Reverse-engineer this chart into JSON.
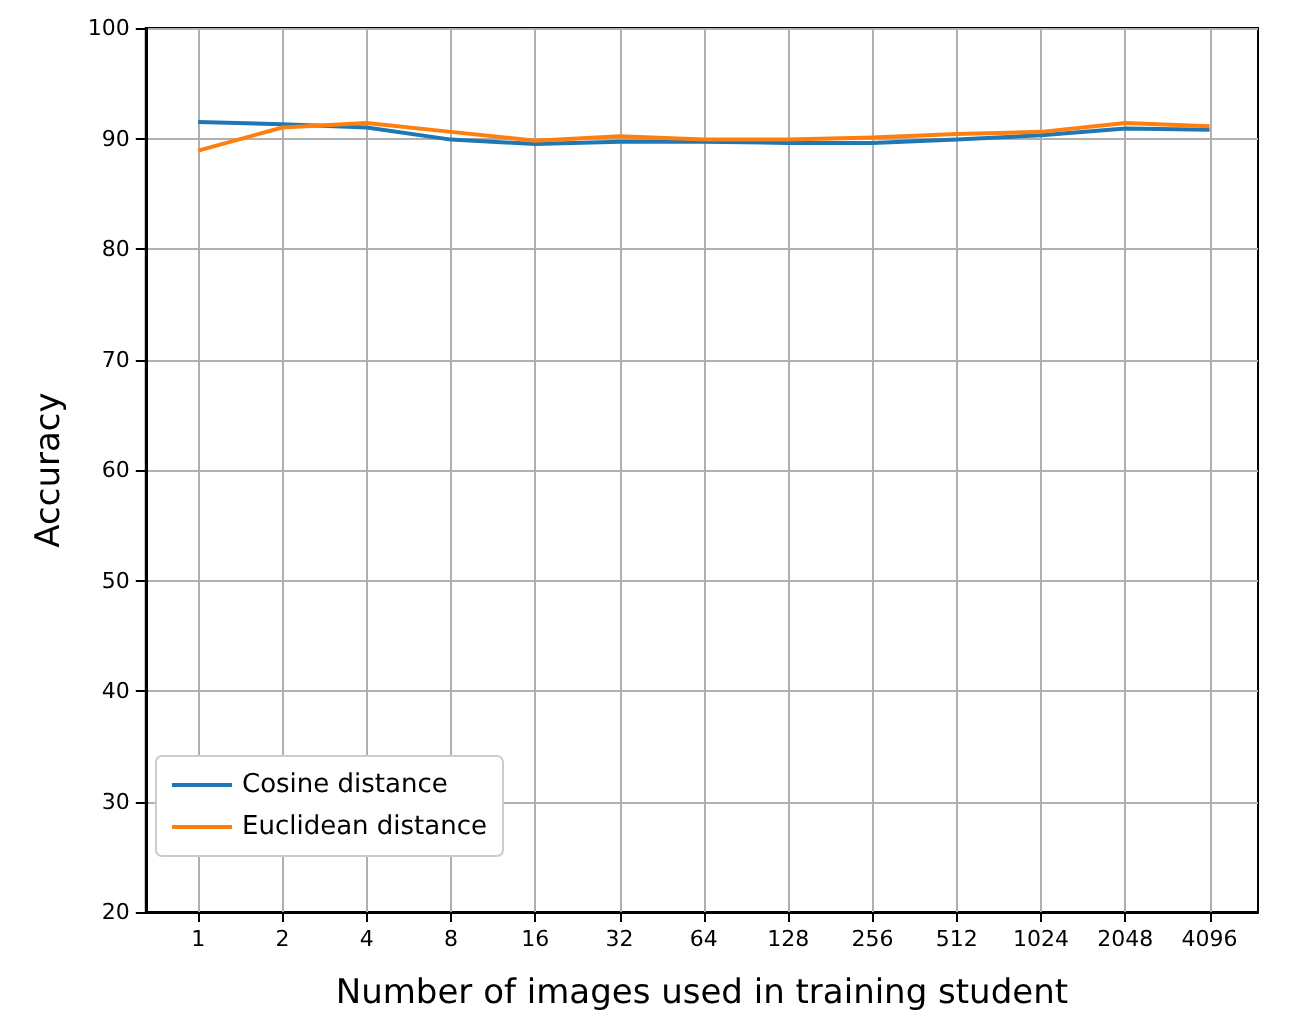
{
  "chart_data": {
    "type": "line",
    "xlabel": "Number of images used in training student",
    "ylabel": "Accuracy",
    "x": [
      1,
      2,
      4,
      8,
      16,
      32,
      64,
      128,
      256,
      512,
      1024,
      2048,
      4096
    ],
    "series": [
      {
        "name": "Cosine distance",
        "color": "#1f77b4",
        "values": [
          91.5,
          91.3,
          91.0,
          89.9,
          89.5,
          89.7,
          89.7,
          89.6,
          89.6,
          89.9,
          90.3,
          90.9,
          90.8
        ]
      },
      {
        "name": "Euclidean distance",
        "color": "#ff7f0e",
        "values": [
          88.9,
          91.0,
          91.4,
          90.6,
          89.8,
          90.2,
          89.9,
          89.9,
          90.1,
          90.4,
          90.6,
          91.4,
          91.1
        ]
      }
    ],
    "log": "x",
    "xlim": [
      0.65,
      6100
    ],
    "xticks": [
      1,
      2,
      4,
      8,
      16,
      32,
      64,
      128,
      256,
      512,
      1024,
      2048,
      4096
    ],
    "ylim": [
      20,
      100
    ],
    "yticks": [
      20,
      30,
      40,
      50,
      60,
      70,
      80,
      90,
      100
    ],
    "grid": true,
    "legend": "bottom left",
    "marker": "none",
    "line_style": "solid"
  }
}
